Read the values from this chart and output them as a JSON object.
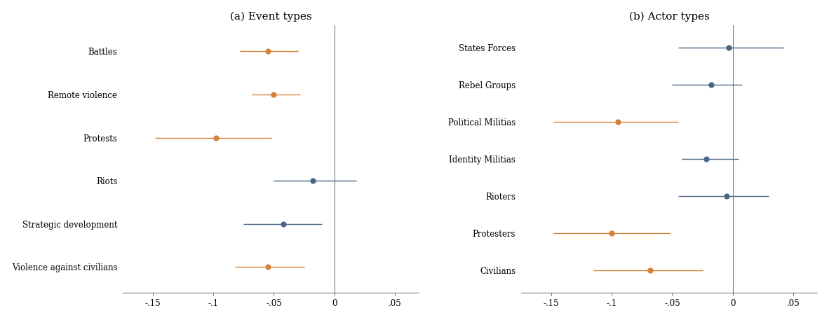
{
  "panel_a_title": "(a) Event types",
  "panel_b_title": "(b) Actor types",
  "panel_a": {
    "labels": [
      "Battles",
      "Remote violence",
      "Protests",
      "Riots",
      "Strategic development",
      "Violence against civilians"
    ],
    "estimates": [
      -0.055,
      -0.05,
      -0.098,
      -0.018,
      -0.042,
      -0.055
    ],
    "ci_low": [
      -0.078,
      -0.068,
      -0.148,
      -0.05,
      -0.075,
      -0.082
    ],
    "ci_high": [
      -0.03,
      -0.028,
      -0.052,
      0.018,
      -0.01,
      -0.025
    ],
    "colors": [
      "#d4823a",
      "#d4823a",
      "#d4823a",
      "#4a6585",
      "#4a6585",
      "#d4823a"
    ]
  },
  "panel_b": {
    "labels": [
      "States Forces",
      "Rebel Groups",
      "Political Militias",
      "Identity Militias",
      "Rioters",
      "Protesters",
      "Civilians"
    ],
    "estimates": [
      -0.003,
      -0.018,
      -0.095,
      -0.022,
      -0.005,
      -0.1,
      -0.068
    ],
    "ci_low": [
      -0.045,
      -0.05,
      -0.148,
      -0.042,
      -0.045,
      -0.148,
      -0.115
    ],
    "ci_high": [
      0.042,
      0.008,
      -0.045,
      0.005,
      0.03,
      -0.052,
      -0.025
    ],
    "colors": [
      "#4a6585",
      "#4a6585",
      "#d4823a",
      "#4a6585",
      "#4a6585",
      "#d4823a",
      "#d4823a"
    ]
  },
  "xlim": [
    -0.175,
    0.07
  ],
  "xticks": [
    -0.15,
    -0.1,
    -0.05,
    0.0,
    0.05
  ],
  "xticklabels": [
    "-.15",
    "-.1",
    "-.05",
    "0",
    ".05"
  ],
  "background_color": "#ffffff",
  "dot_size": 35,
  "line_width": 1.0,
  "color_orange": "#d4823a",
  "color_blue": "#4a6585"
}
